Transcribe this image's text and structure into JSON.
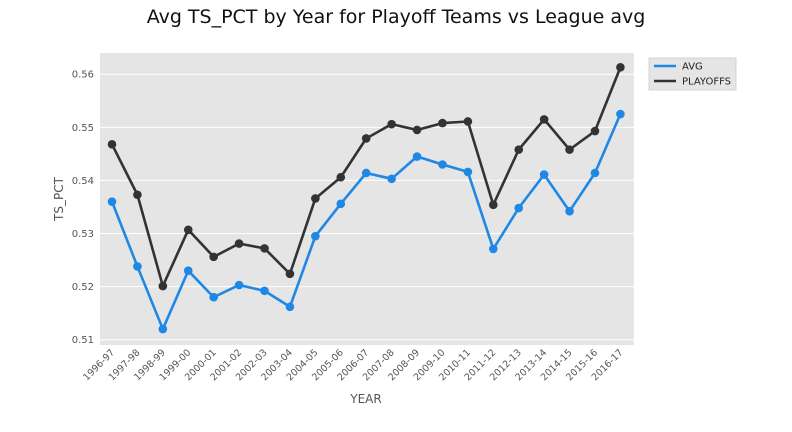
{
  "chart_data": {
    "type": "line",
    "title": "Avg TS_PCT by Year for Playoff Teams vs League avg",
    "xlabel": "YEAR",
    "ylabel": "TS_PCT",
    "categories": [
      "1996-97",
      "1997-98",
      "1998-99",
      "1999-00",
      "2000-01",
      "2001-02",
      "2002-03",
      "2003-04",
      "2004-05",
      "2005-06",
      "2006-07",
      "2007-08",
      "2008-09",
      "2009-10",
      "2010-11",
      "2011-12",
      "2012-13",
      "2013-14",
      "2014-15",
      "2015-16",
      "2016-17"
    ],
    "yticks": [
      "0.51",
      "0.52",
      "0.53",
      "0.54",
      "0.55",
      "0.56"
    ],
    "ylim": [
      0.509,
      0.564
    ],
    "grid": true,
    "legend_position": "upper right, outside plot",
    "series": [
      {
        "name": "AVG",
        "color": "#1f88e5",
        "values": [
          0.536,
          0.5238,
          0.512,
          0.523,
          0.518,
          0.5203,
          0.5192,
          0.5162,
          0.5295,
          0.5356,
          0.5414,
          0.5403,
          0.5445,
          0.543,
          0.5416,
          0.5271,
          0.5348,
          0.5411,
          0.5342,
          0.5414,
          0.5525
        ]
      },
      {
        "name": "PLAYOFFS",
        "color": "#333333",
        "values": [
          0.5468,
          0.5373,
          0.5201,
          0.5307,
          0.5256,
          0.5281,
          0.5272,
          0.5224,
          0.5366,
          0.5406,
          0.5479,
          0.5506,
          0.5495,
          0.5508,
          0.5511,
          0.5354,
          0.5458,
          0.5515,
          0.5458,
          0.5493,
          0.5613
        ]
      }
    ]
  }
}
